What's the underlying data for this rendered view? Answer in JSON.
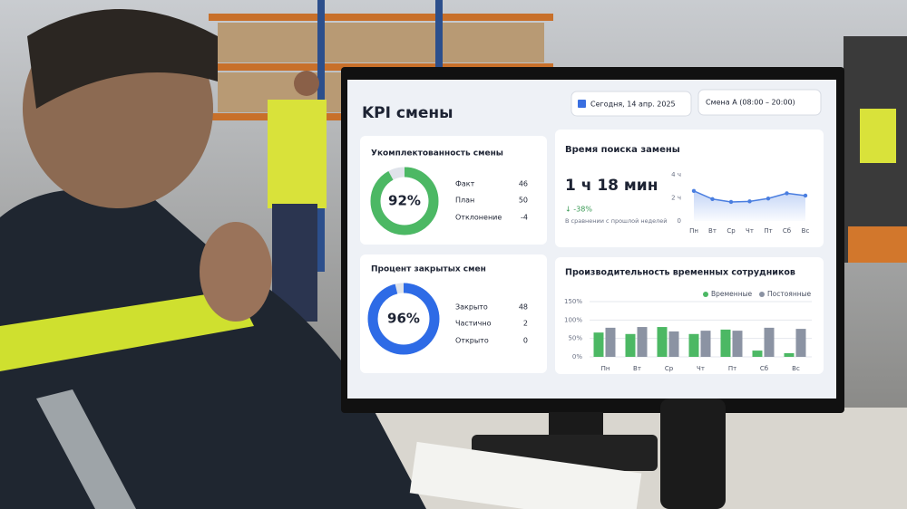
{
  "header": {
    "title": "KPI смены",
    "date": "Сегодня, 14 апр. 2025",
    "shift": "Смена А (08:00 – 20:00)"
  },
  "chart_data": [
    {
      "type": "donut",
      "title": "Укомплектованность смены",
      "values": [
        92
      ],
      "value_labels": [
        "92%"
      ],
      "color": "#4cb864",
      "ylim": [
        0,
        100
      ],
      "rows": [
        {
          "label": "Факт",
          "value": 46
        },
        {
          "label": "План",
          "value": 50
        },
        {
          "label": "Отклонение",
          "value": -4
        }
      ]
    },
    {
      "type": "line",
      "title": "Время поиска замены",
      "headline": "1 ч 18 мин",
      "change": "↓ -38%",
      "note": "В сравнении с прошлой неделей",
      "categories": [
        "Пн",
        "Вт",
        "Ср",
        "Чт",
        "Пт",
        "Сб",
        "Вс"
      ],
      "values": [
        2.6,
        1.9,
        1.65,
        1.7,
        1.95,
        2.4,
        2.2
      ],
      "color": "#4a7ee0",
      "ylim": [
        0,
        4
      ],
      "yticks": [
        0,
        {
          "value": 2,
          "label": "2 ч"
        },
        {
          "value": 4,
          "label": "4 ч"
        }
      ]
    },
    {
      "type": "donut",
      "title": "Процент закрытых смен",
      "values": [
        96
      ],
      "value_labels": [
        "96%"
      ],
      "color": "#2e6be6",
      "ylim": [
        0,
        100
      ],
      "rows": [
        {
          "label": "Закрыто",
          "value": 48
        },
        {
          "label": "Частично",
          "value": 2
        },
        {
          "label": "Открыто",
          "value": 0
        }
      ]
    },
    {
      "type": "bar",
      "title": "Производительность временных сотрудников",
      "categories": [
        "Пн",
        "Вт",
        "Ср",
        "Чт",
        "Пт",
        "Сб",
        "Вс"
      ],
      "series": [
        {
          "name": "Временные",
          "color": "#4cb864",
          "values": [
            66,
            62,
            81,
            62,
            74,
            17,
            10
          ]
        },
        {
          "name": "Постоянные",
          "color": "#8b93a3",
          "values": [
            79,
            81,
            69,
            71,
            71,
            79,
            76
          ]
        }
      ],
      "ylim": [
        0,
        150
      ],
      "yticks": [
        {
          "value": 0,
          "label": "0%"
        },
        {
          "value": 50,
          "label": "50%"
        },
        {
          "value": 100,
          "label": "100%"
        },
        {
          "value": 150,
          "label": "150%"
        }
      ],
      "grid": true
    }
  ]
}
